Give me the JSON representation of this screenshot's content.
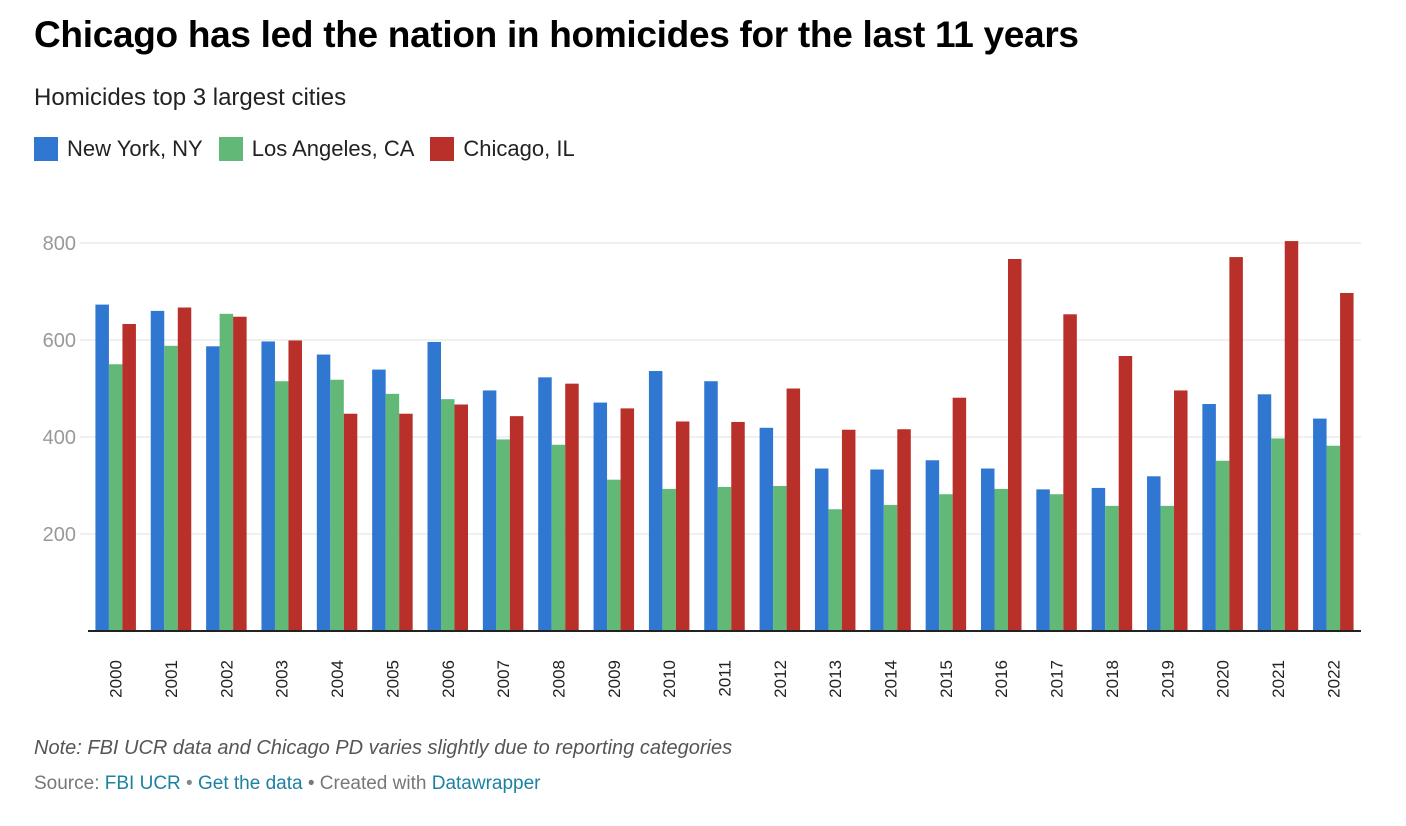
{
  "header": {
    "title": "Chicago has led the nation in homicides for the last 11 years",
    "subtitle": "Homicides top 3 largest cities"
  },
  "footer": {
    "note": "Note: FBI UCR data and Chicago PD varies slightly due to reporting categories",
    "source_label": "Source:",
    "source_link": "FBI UCR",
    "separator": "•",
    "get_data": "Get the data",
    "created_with": "• Created with",
    "datawrapper": "Datawrapper"
  },
  "chart_data": {
    "type": "bar",
    "title": "Chicago has led the nation in homicides for the last 11 years",
    "subtitle": "Homicides top 3 largest cities",
    "xlabel": "",
    "ylabel": "",
    "ylim": [
      0,
      800
    ],
    "yticks": [
      200,
      400,
      600,
      800
    ],
    "grid": true,
    "legend_position": "top-left",
    "categories": [
      "2000",
      "2001",
      "2002",
      "2003",
      "2004",
      "2005",
      "2006",
      "2007",
      "2008",
      "2009",
      "2010",
      "2011",
      "2012",
      "2013",
      "2014",
      "2015",
      "2016",
      "2017",
      "2018",
      "2019",
      "2020",
      "2021",
      "2022"
    ],
    "series": [
      {
        "name": "New York, NY",
        "color": "#2f77d0",
        "values": [
          673,
          660,
          587,
          597,
          570,
          539,
          596,
          496,
          523,
          471,
          536,
          515,
          419,
          335,
          333,
          352,
          335,
          292,
          295,
          319,
          468,
          488,
          438
        ]
      },
      {
        "name": "Los Angeles, CA",
        "color": "#62b877",
        "values": [
          550,
          588,
          654,
          515,
          518,
          489,
          478,
          395,
          384,
          312,
          293,
          297,
          299,
          251,
          260,
          282,
          293,
          282,
          258,
          258,
          351,
          397,
          382
        ]
      },
      {
        "name": "Chicago, IL",
        "color": "#b9302a",
        "values": [
          633,
          667,
          648,
          599,
          448,
          448,
          467,
          443,
          510,
          459,
          432,
          431,
          500,
          415,
          416,
          481,
          767,
          653,
          567,
          496,
          771,
          804,
          697
        ]
      }
    ]
  }
}
